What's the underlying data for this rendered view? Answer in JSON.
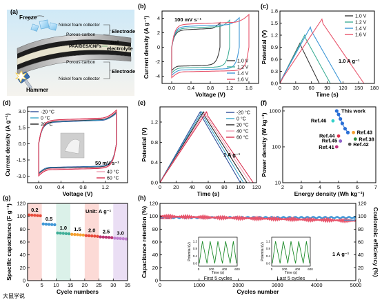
{
  "panel_labels": [
    "(a)",
    "(b)",
    "(c)",
    "(d)",
    "(e)",
    "(f)",
    "(g)",
    "(h)"
  ],
  "schematic": {
    "freeze": "Freeze",
    "hammer": "Hammer",
    "top_collector": "Nickel foam collector",
    "top_carbon": "Porous carbon",
    "top_electrode": "Electrode",
    "gel_layer": "PAA/DES/CNFs",
    "gel_label_1": "Gel",
    "gel_label_2": "electrolyte",
    "bottom_carbon": "Porous carbon",
    "bottom_collector": "Nickel foam collector",
    "bottom_electrode": "Electrode"
  },
  "watermark": "大鼠学说",
  "colors": {
    "v10": "#3a3a3a",
    "v12": "#3fae97",
    "v14": "#3d96d6",
    "v16": "#e8546b",
    "tm20": "#2f4f9a",
    "t0": "#3aa6c9",
    "t20": "#222222",
    "t40": "#f0a0b4",
    "t60": "#d9304f",
    "thiswork": "#2a6fd6",
    "ref46": "#34d1c9",
    "ref43": "#f5a030",
    "ref44": "#e0304a",
    "ref45": "#8e63c9",
    "ref38": "#2e8b3e",
    "ref41": "#c0307f",
    "ref42": "#555555",
    "retention": "#e8546b",
    "efficiency": "#3d96d6",
    "inset_line": "#1e8c2a"
  },
  "chart_data": [
    {
      "id": "b",
      "type": "line",
      "title": "",
      "xlabel": "Voltage (V)",
      "ylabel": "Current density (A g⁻¹)",
      "xlim": [
        -0.2,
        1.8
      ],
      "ylim": [
        -5,
        5
      ],
      "xticks": [
        "0.0",
        "0.4",
        "0.8",
        "1.2",
        "1.6"
      ],
      "xtick_values": [
        0,
        0.4,
        0.8,
        1.2,
        1.6
      ],
      "yticks": [
        "-4",
        "-2",
        "0",
        "2",
        "4"
      ],
      "ytick_values": [
        -4,
        -2,
        0,
        2,
        4
      ],
      "annotation": "100 mV s⁻¹",
      "series": [
        {
          "name": "1.0 V",
          "vmax": 1.0,
          "top": 3.0,
          "bottom": -3.0
        },
        {
          "name": "1.2 V",
          "vmax": 1.2,
          "top": 3.3,
          "bottom": -3.3
        },
        {
          "name": "1.4 V",
          "vmax": 1.4,
          "top": 3.6,
          "bottom": -3.6
        },
        {
          "name": "1.6 V",
          "vmax": 1.6,
          "top": 4.0,
          "bottom": -3.9
        }
      ]
    },
    {
      "id": "c",
      "type": "line",
      "title": "",
      "xlabel": "Time (s)",
      "ylabel": "Potential (V)",
      "xlim": [
        0,
        180
      ],
      "ylim": [
        0,
        1.8
      ],
      "xticks": [
        "0",
        "30",
        "60",
        "90",
        "120",
        "150",
        "180"
      ],
      "xtick_values": [
        0,
        30,
        60,
        90,
        120,
        150,
        180
      ],
      "yticks": [
        "0.0",
        "0.3",
        "0.6",
        "0.9",
        "1.2",
        "1.5",
        "1.8"
      ],
      "ytick_values": [
        0,
        0.3,
        0.6,
        0.9,
        1.2,
        1.5,
        1.8
      ],
      "annotation": "1.0 A g⁻¹",
      "series": [
        {
          "name": "1.0 V",
          "vmax": 1.0,
          "peak_t": 38,
          "end_t": 75
        },
        {
          "name": "1.2 V",
          "vmax": 1.2,
          "peak_t": 47,
          "end_t": 96
        },
        {
          "name": "1.4 V",
          "vmax": 1.4,
          "peak_t": 58,
          "end_t": 117
        },
        {
          "name": "1.6 V",
          "vmax": 1.6,
          "peak_t": 80,
          "end_t": 160
        }
      ]
    },
    {
      "id": "d",
      "type": "line",
      "title": "",
      "xlabel": "Voltage (V)",
      "ylabel": "Current density (A g⁻¹)",
      "xlim": [
        -0.2,
        1.6
      ],
      "ylim": [
        -3.6,
        3.4
      ],
      "xticks": [
        "0.0",
        "0.4",
        "0.8",
        "1.2"
      ],
      "xtick_values": [
        0,
        0.4,
        0.8,
        1.2
      ],
      "yticks": [
        "-3.0",
        "-1.5",
        "0.0",
        "1.5",
        "3.0"
      ],
      "ytick_values": [
        -3,
        -1.5,
        0,
        1.5,
        3
      ],
      "annotation": "50 mV s⁻¹",
      "series": [
        {
          "name": "-20 °C",
          "top": 2.5,
          "bottom": -2.5
        },
        {
          "name": "0 °C",
          "top": 2.55,
          "bottom": -2.55
        },
        {
          "name": "20 °C",
          "top": 2.6,
          "bottom": -2.6
        },
        {
          "name": "40 °C",
          "top": 2.65,
          "bottom": -2.65
        },
        {
          "name": "60 °C",
          "top": 2.75,
          "bottom": -2.75
        }
      ]
    },
    {
      "id": "e",
      "type": "line",
      "title": "",
      "xlabel": "Time (s)",
      "ylabel": "Potential (V)",
      "xlim": [
        0,
        120
      ],
      "ylim": [
        0,
        1.5
      ],
      "xticks": [
        "0",
        "20",
        "40",
        "60",
        "80",
        "100",
        "120"
      ],
      "xtick_values": [
        0,
        20,
        40,
        60,
        80,
        100,
        120
      ],
      "yticks": [
        "0.0",
        "0.4",
        "0.8",
        "1.2"
      ],
      "ytick_values": [
        0,
        0.4,
        0.8,
        1.2
      ],
      "annotation": "1 A g⁻¹",
      "series": [
        {
          "name": "-20 °C",
          "peak_t": 50,
          "end_t": 100
        },
        {
          "name": "0 °C",
          "peak_t": 52,
          "end_t": 104
        },
        {
          "name": "20 °C",
          "peak_t": 54,
          "end_t": 108
        },
        {
          "name": "40 °C",
          "peak_t": 56,
          "end_t": 112
        },
        {
          "name": "60 °C",
          "peak_t": 58,
          "end_t": 116
        }
      ]
    },
    {
      "id": "f",
      "type": "scatter",
      "title": "",
      "xlabel": "Energy density (Wh kg⁻¹)",
      "ylabel": "Power density (W kg⁻¹)",
      "xlim": [
        2,
        7
      ],
      "ylim_log": [
        10,
        1300
      ],
      "yscale": "log",
      "xticks": [
        "2",
        "3",
        "4",
        "5",
        "6",
        "7"
      ],
      "xtick_values": [
        2,
        3,
        4,
        5,
        6,
        7
      ],
      "yticks": [
        "10",
        "100",
        "1000"
      ],
      "ytick_values": [
        10,
        100,
        1000
      ],
      "this_work": {
        "label": "This work",
        "points": [
          [
            4.9,
            1000
          ],
          [
            5.0,
            800
          ],
          [
            5.1,
            600
          ],
          [
            5.2,
            450
          ],
          [
            5.35,
            320
          ],
          [
            5.5,
            250
          ]
        ]
      },
      "refs": [
        {
          "name": "Ref.46",
          "x": 4.7,
          "y": 530
        },
        {
          "name": "Ref.43",
          "x": 5.8,
          "y": 250
        },
        {
          "name": "Ref.44",
          "x": 5.0,
          "y": 200
        },
        {
          "name": "Ref.38",
          "x": 5.9,
          "y": 165
        },
        {
          "name": "Ref.45",
          "x": 5.1,
          "y": 145
        },
        {
          "name": "Ref.42",
          "x": 5.6,
          "y": 118
        },
        {
          "name": "Ref.41",
          "x": 4.9,
          "y": 100
        }
      ]
    },
    {
      "id": "g",
      "type": "scatter",
      "title": "",
      "xlabel": "Cycle numbers",
      "ylabel": "Specific capacitance (F g⁻¹)",
      "xlim": [
        0,
        35
      ],
      "ylim": [
        0,
        120
      ],
      "xticks": [
        "0",
        "5",
        "10",
        "15",
        "20",
        "25",
        "30",
        "35"
      ],
      "xtick_values": [
        0,
        5,
        10,
        15,
        20,
        25,
        30,
        35
      ],
      "yticks": [
        "0",
        "20",
        "40",
        "60",
        "80",
        "100",
        "120"
      ],
      "ytick_values": [
        0,
        20,
        40,
        60,
        80,
        100,
        120
      ],
      "annotation": "Unit: A g⁻¹",
      "groups": [
        {
          "label": "0.2",
          "start": 1,
          "end": 5,
          "value": 102,
          "color": "#e84a3a",
          "band": true
        },
        {
          "label": "0.5",
          "start": 6,
          "end": 10,
          "value": 88,
          "color": "#3d96d6",
          "band": false
        },
        {
          "label": "1.0",
          "start": 11,
          "end": 15,
          "value": 74,
          "color": "#3fae97",
          "band": true
        },
        {
          "label": "1.5",
          "start": 16,
          "end": 20,
          "value": 72,
          "color": "#f5a030",
          "band": false
        },
        {
          "label": "2.0",
          "start": 21,
          "end": 25,
          "value": 70,
          "color": "#e84a3a",
          "band": true
        },
        {
          "label": "2.5",
          "start": 26,
          "end": 30,
          "value": 68,
          "color": "#b83070",
          "band": false
        },
        {
          "label": "3.0",
          "start": 31,
          "end": 35,
          "value": 66,
          "color": "#c080d0",
          "band": true
        }
      ]
    },
    {
      "id": "h",
      "type": "line",
      "title": "",
      "xlabel": "Cycles number",
      "ylabel": "Capacitance retention (%)",
      "ylabel_right": "Coulombic efficiency (%)",
      "xlim": [
        0,
        5000
      ],
      "ylim": [
        0,
        120
      ],
      "ylim_right": [
        0,
        120
      ],
      "xticks": [
        "0",
        "1000",
        "2000",
        "3000",
        "4000",
        "5000"
      ],
      "xtick_values": [
        0,
        1000,
        2000,
        3000,
        4000,
        5000
      ],
      "yticks": [
        "0",
        "20",
        "40",
        "60",
        "80",
        "100",
        "120"
      ],
      "ytick_values": [
        0,
        20,
        40,
        60,
        80,
        100,
        120
      ],
      "annotation": "1 A g⁻¹",
      "retention": {
        "start": 100,
        "end": 93
      },
      "efficiency": {
        "value": 98
      },
      "insets": [
        {
          "label": "First 5 cycles",
          "xlabel": "Time (s)",
          "ylabel": "Potential (V)",
          "xticks": [
            "0",
            "200",
            "400",
            "600"
          ],
          "yticks": [
            "0.0",
            "0.4",
            "0.8",
            "1.2"
          ],
          "cycles": 5
        },
        {
          "label": "Last 5 cycles",
          "xlabel": "Time (s)",
          "ylabel": "Potential (V)",
          "xticks": [
            "0",
            "200",
            "400",
            "600"
          ],
          "yticks": [
            "0.0",
            "0.4",
            "0.8",
            "1.2"
          ],
          "cycles": 5
        }
      ]
    }
  ]
}
